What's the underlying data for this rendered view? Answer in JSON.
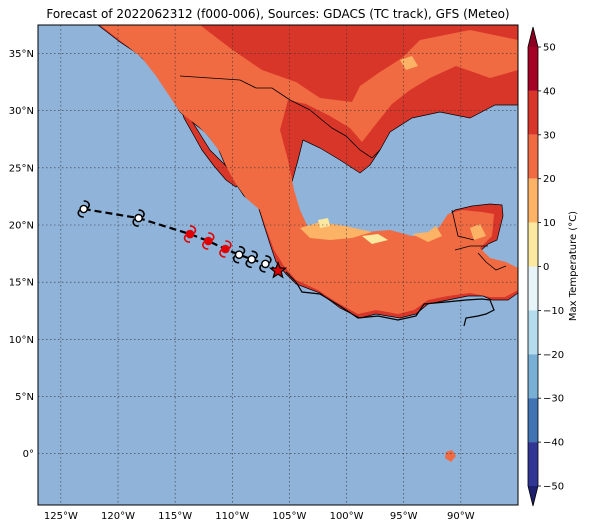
{
  "title": "Forecast of 2022062312 (f000-006), Sources: GDACS (TC track), GFS (Meteo)",
  "colors": {
    "ocean": "#8fb3d9",
    "land_hot": "#d9362a",
    "land_warm": "#f06b42",
    "land_mild": "#fdb365",
    "land_cool": "#fde8a0",
    "track": "#000000",
    "forecast_storm": "#e00000",
    "grid": "#333333"
  },
  "map": {
    "lon_range": [
      -127.0,
      -85.0
    ],
    "lat_range": [
      -4.5,
      37.5
    ],
    "lon_ticks": [
      {
        "value": -125,
        "label": "125°W"
      },
      {
        "value": -120,
        "label": "120°W"
      },
      {
        "value": -115,
        "label": "115°W"
      },
      {
        "value": -110,
        "label": "110°W"
      },
      {
        "value": -105,
        "label": "105°W"
      },
      {
        "value": -100,
        "label": "100°W"
      },
      {
        "value": -95,
        "label": "95°W"
      },
      {
        "value": -90,
        "label": "90°W"
      }
    ],
    "lat_ticks": [
      {
        "value": 35,
        "label": "35°N"
      },
      {
        "value": 30,
        "label": "30°N"
      },
      {
        "value": 25,
        "label": "25°N"
      },
      {
        "value": 20,
        "label": "20°N"
      },
      {
        "value": 15,
        "label": "15°N"
      },
      {
        "value": 10,
        "label": "10°N"
      },
      {
        "value": 5,
        "label": "5°N"
      },
      {
        "value": 0,
        "label": "0°"
      }
    ]
  },
  "track": {
    "current_position": {
      "lon": -106.0,
      "lat": 16.0,
      "icon": "star-icon"
    },
    "points": [
      {
        "lon": -123.0,
        "lat": 21.4,
        "status": "past"
      },
      {
        "lon": -118.2,
        "lat": 20.6,
        "status": "past"
      },
      {
        "lon": -113.7,
        "lat": 19.2,
        "status": "forecast"
      },
      {
        "lon": -112.1,
        "lat": 18.6,
        "status": "forecast"
      },
      {
        "lon": -110.6,
        "lat": 17.9,
        "status": "forecast"
      },
      {
        "lon": -109.4,
        "lat": 17.4,
        "status": "past"
      },
      {
        "lon": -108.3,
        "lat": 17.0,
        "status": "past"
      },
      {
        "lon": -107.1,
        "lat": 16.6,
        "status": "past"
      }
    ]
  },
  "colorbar": {
    "label": "Max Temperature (°C)",
    "ticks": [
      "50",
      "40",
      "30",
      "20",
      "10",
      "0",
      "−10",
      "−20",
      "−30",
      "−40",
      "−50"
    ],
    "levels": [
      {
        "range": [
          40,
          50
        ],
        "color": "#a50026"
      },
      {
        "range": [
          30,
          40
        ],
        "color": "#d9362a"
      },
      {
        "range": [
          20,
          30
        ],
        "color": "#f06b42"
      },
      {
        "range": [
          10,
          20
        ],
        "color": "#fdb365"
      },
      {
        "range": [
          0,
          10
        ],
        "color": "#fde8a0"
      },
      {
        "range": [
          -10,
          0
        ],
        "color": "#e8f5f8"
      },
      {
        "range": [
          -20,
          -10
        ],
        "color": "#b4dced"
      },
      {
        "range": [
          -30,
          -20
        ],
        "color": "#78afd4"
      },
      {
        "range": [
          -40,
          -30
        ],
        "color": "#4073b4"
      },
      {
        "range": [
          -50,
          -40
        ],
        "color": "#313695"
      }
    ],
    "over_color": "#8b0020",
    "under_color": "#1f1f70"
  }
}
